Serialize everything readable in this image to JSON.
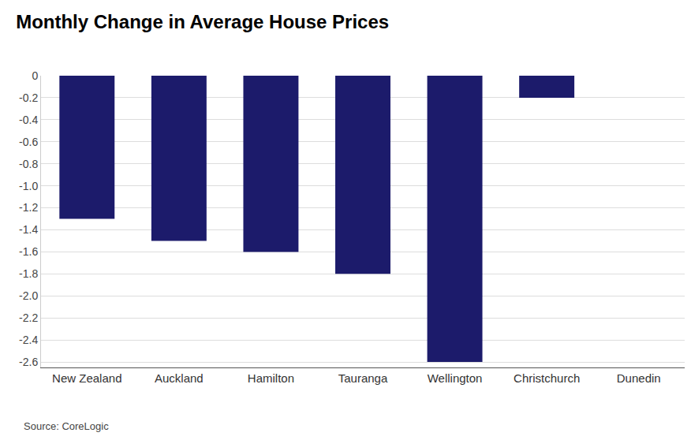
{
  "chart_data": {
    "type": "bar",
    "title": "Monthly Change in Average House Prices",
    "source": "Source: CoreLogic",
    "categories": [
      "New Zealand",
      "Auckland",
      "Hamilton",
      "Tauranga",
      "Wellington",
      "Christchurch",
      "Dunedin"
    ],
    "values": [
      -1.3,
      -1.5,
      -1.6,
      -1.8,
      -2.6,
      -0.2,
      0
    ],
    "color": "#1c1b6b",
    "ylim": [
      -2.65,
      0
    ],
    "yticks": [
      0,
      -0.2,
      -0.4,
      -0.6,
      -0.8,
      {
        "value": -1,
        "label": "-1.0"
      },
      -1.2,
      -1.4,
      -1.6,
      -1.8,
      {
        "value": -2,
        "label": "-2.0"
      },
      -2.2,
      -2.4,
      -2.6
    ],
    "grid": true
  }
}
